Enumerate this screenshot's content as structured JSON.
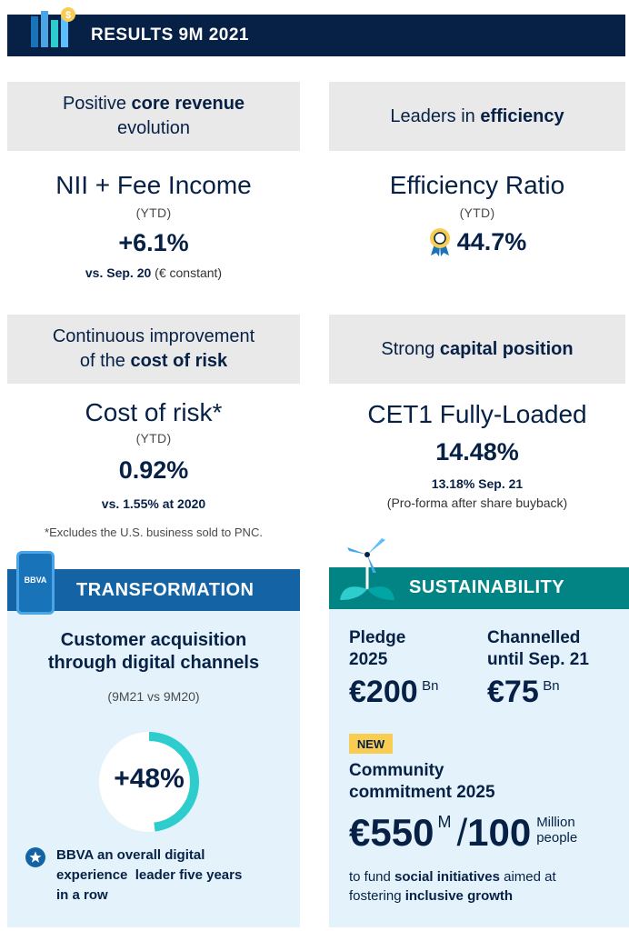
{
  "header": {
    "title": "RESULTS 9M 2021"
  },
  "cards": {
    "core_revenue": {
      "heading_pre": "Positive ",
      "heading_bold": "core revenue",
      "heading_post": "evolution",
      "metric_title": "NII + Fee Income",
      "metric_sub": "(YTD)",
      "value": "+6.1%",
      "note_bold": "vs. Sep. 20",
      "note_rest": " (€ constant)"
    },
    "efficiency": {
      "heading_pre": "Leaders in ",
      "heading_bold": "efficiency",
      "metric_title": "Efficiency Ratio",
      "metric_sub": "(YTD)",
      "value": "44.7%",
      "icon": "award-medal-icon"
    },
    "cost_of_risk": {
      "heading_line1": "Continuous improvement",
      "heading_pre": "of the ",
      "heading_bold": "cost of risk",
      "metric_title": "Cost of risk*",
      "metric_sub": "(YTD)",
      "value": "0.92%",
      "note": "vs. 1.55% at 2020",
      "footnote": "*Excludes the U.S. business sold to PNC."
    },
    "capital": {
      "heading_pre": "Strong ",
      "heading_bold": "capital position",
      "metric_title": "CET1 Fully-Loaded",
      "value": "14.48%",
      "note_bold": "13.18% Sep. 21",
      "note_rest": "(Pro-forma after share buyback)"
    }
  },
  "transformation": {
    "title": "TRANSFORMATION",
    "phone_label": "BBVA",
    "heading_line1": "Customer acquisition",
    "heading_line2": "through digital channels",
    "period": "(9M21 vs 9M20)",
    "value": "+48%",
    "progress_fraction": 0.48,
    "award_line1": "BBVA an overall digital",
    "award_line2": "experience  leader five years",
    "award_line3": "in a row"
  },
  "sustainability": {
    "title": "SUSTAINABILITY",
    "pledge_label_1": "Pledge",
    "pledge_label_2": "2025",
    "pledge_value": "€200",
    "pledge_unit": "Bn",
    "channelled_label_1": "Channelled",
    "channelled_label_2": "until Sep. 21",
    "channelled_value": "€75",
    "channelled_unit": "Bn",
    "new_badge": "NEW",
    "community_line1": "Community",
    "community_line2": "commitment 2025",
    "community_value": "€550",
    "community_unit": "M",
    "slash": "/",
    "people_value": "100",
    "people_unit_1": "Million",
    "people_unit_2": "people",
    "text_pre": "to fund ",
    "text_bold1": "social initiatives",
    "text_mid": " aimed at",
    "text_line2_pre": "fostering ",
    "text_bold2": "inclusive growth"
  },
  "colors": {
    "navy": "#072146",
    "blue": "#1464a5",
    "teal": "#028484",
    "aqua": "#2dcccd",
    "gold": "#f8cd51",
    "grey": "#e9e9ea",
    "panel": "#e4f3fb"
  }
}
